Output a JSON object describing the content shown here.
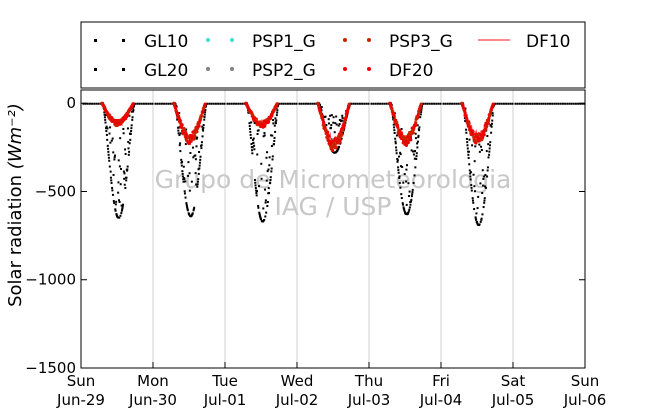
{
  "chart_data": {
    "type": "scatter",
    "ylabel": "Solar radiation",
    "ylabel_unit": "(Wm⁻²)",
    "ylim": [
      -1500,
      75
    ],
    "yticks": [
      0,
      -500,
      -1000,
      -1500
    ],
    "ytick_labels": [
      "0",
      "−500",
      "−1000",
      "−1500"
    ],
    "xlim": [
      "2025-06-29",
      "2025-07-06"
    ],
    "xtick_labels": [
      {
        "day": "Sun",
        "date": "Jun-29"
      },
      {
        "day": "Mon",
        "date": "Jun-30"
      },
      {
        "day": "Tue",
        "date": "Jul-01"
      },
      {
        "day": "Wed",
        "date": "Jul-02"
      },
      {
        "day": "Thu",
        "date": "Jul-03"
      },
      {
        "day": "Fri",
        "date": "Jul-04"
      },
      {
        "day": "Sat",
        "date": "Jul-05"
      },
      {
        "day": "Sun",
        "date": "Jul-06"
      }
    ],
    "grid": "x",
    "legend_placement": "top",
    "series": [
      {
        "name": "GL10",
        "color": "#000000",
        "style": "dotted-points"
      },
      {
        "name": "PSP1_G",
        "color": "#40e0d0",
        "style": "points"
      },
      {
        "name": "PSP3_G",
        "color": "#cc2200",
        "style": "points"
      },
      {
        "name": "DF10",
        "color": "#ff4040",
        "style": "line"
      },
      {
        "name": "GL20",
        "color": "#000000",
        "style": "dotted-points"
      },
      {
        "name": "PSP2_G",
        "color": "#808080",
        "style": "points"
      },
      {
        "name": "DF20",
        "color": "#ee0000",
        "style": "points"
      }
    ],
    "daily_minimum_global": [
      {
        "date": "Jun-29",
        "value": -650
      },
      {
        "date": "Jun-30",
        "value": -640
      },
      {
        "date": "Jul-01",
        "value": -670
      },
      {
        "date": "Jul-02",
        "value": -280
      },
      {
        "date": "Jul-03",
        "value": -630
      },
      {
        "date": "Jul-04",
        "value": -690
      },
      {
        "date": "Jul-05",
        "value": 0
      }
    ],
    "daily_minimum_diffuse": [
      {
        "date": "Jun-29",
        "value": -130
      },
      {
        "date": "Jun-30",
        "value": -230
      },
      {
        "date": "Jul-01",
        "value": -140
      },
      {
        "date": "Jul-02",
        "value": -270
      },
      {
        "date": "Jul-03",
        "value": -240
      },
      {
        "date": "Jul-04",
        "value": -230
      },
      {
        "date": "Jul-05",
        "value": 0
      }
    ],
    "watermark": [
      "Grupo de Micrometeorologia",
      "IAG / USP"
    ]
  }
}
